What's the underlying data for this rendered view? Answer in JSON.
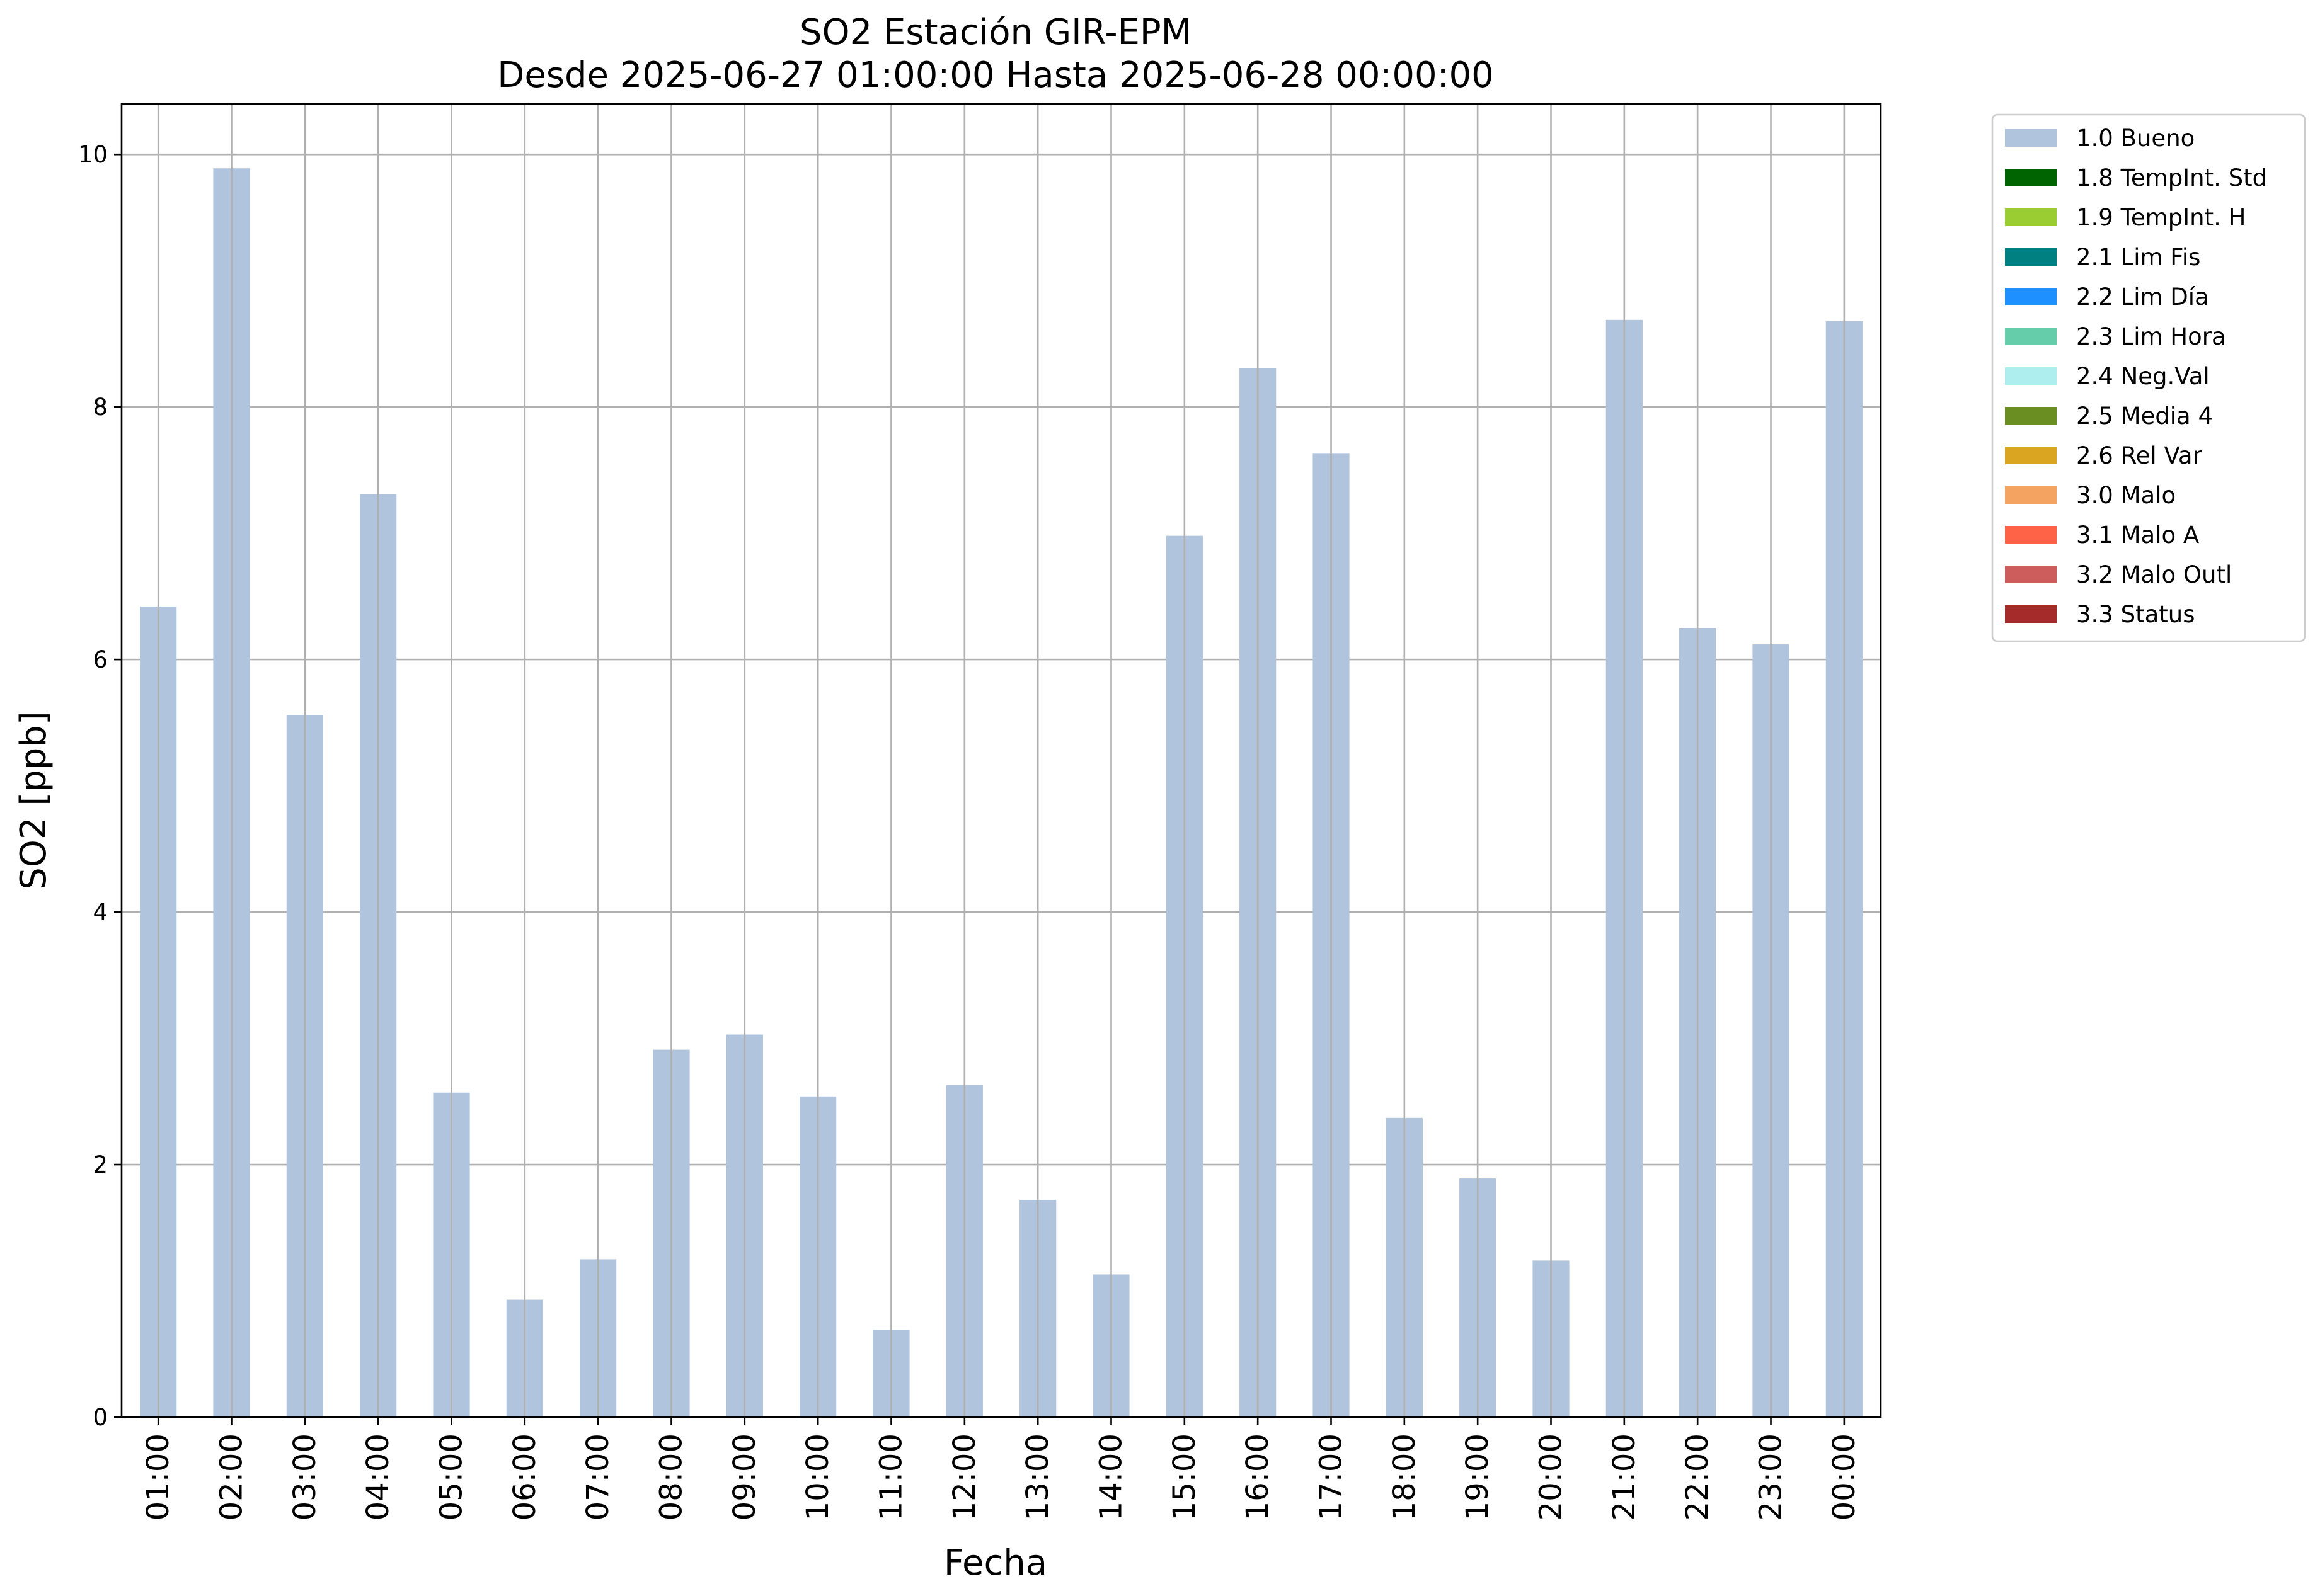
{
  "chart_data": {
    "type": "bar",
    "title": "SO2 Estación GIR-EPM",
    "subtitle": "Desde 2025-06-27 01:00:00 Hasta 2025-06-28 00:00:00",
    "xlabel": "Fecha",
    "ylabel": "SO2 [ppb]",
    "ylim": [
      0,
      10.4
    ],
    "yticks": [
      "0",
      "2",
      "4",
      "6",
      "8",
      "10"
    ],
    "grid": true,
    "legend_position": "outside-right",
    "categories": [
      "01:00",
      "02:00",
      "03:00",
      "04:00",
      "05:00",
      "06:00",
      "07:00",
      "08:00",
      "09:00",
      "10:00",
      "11:00",
      "12:00",
      "13:00",
      "14:00",
      "15:00",
      "16:00",
      "17:00",
      "18:00",
      "19:00",
      "20:00",
      "21:00",
      "22:00",
      "23:00",
      "00:00"
    ],
    "series": [
      {
        "name": "1.0 Bueno",
        "color": "#b0c4de",
        "values": [
          6.42,
          9.89,
          5.56,
          7.31,
          2.57,
          0.93,
          1.25,
          2.91,
          3.03,
          2.54,
          0.69,
          2.63,
          1.72,
          1.13,
          6.98,
          8.31,
          7.63,
          2.37,
          1.89,
          1.24,
          8.69,
          6.25,
          6.12,
          8.68
        ]
      }
    ],
    "legend": [
      {
        "label": "1.0 Bueno",
        "color": "#b0c4de"
      },
      {
        "label": "1.8 TempInt. Std",
        "color": "#006400"
      },
      {
        "label": "1.9 TempInt. H",
        "color": "#9acd32"
      },
      {
        "label": "2.1 Lim Fis",
        "color": "#008080"
      },
      {
        "label": "2.2 Lim Día",
        "color": "#1e90ff"
      },
      {
        "label": "2.3 Lim Hora",
        "color": "#66cdaa"
      },
      {
        "label": "2.4 Neg.Val",
        "color": "#afeeee"
      },
      {
        "label": "2.5 Media 4",
        "color": "#6b8e23"
      },
      {
        "label": "2.6 Rel Var",
        "color": "#daa520"
      },
      {
        "label": "3.0 Malo",
        "color": "#f4a460"
      },
      {
        "label": "3.1 Malo A",
        "color": "#ff6347"
      },
      {
        "label": "3.2 Malo Outl",
        "color": "#cd5c5c"
      },
      {
        "label": "3.3 Status",
        "color": "#a52a2a"
      }
    ]
  }
}
